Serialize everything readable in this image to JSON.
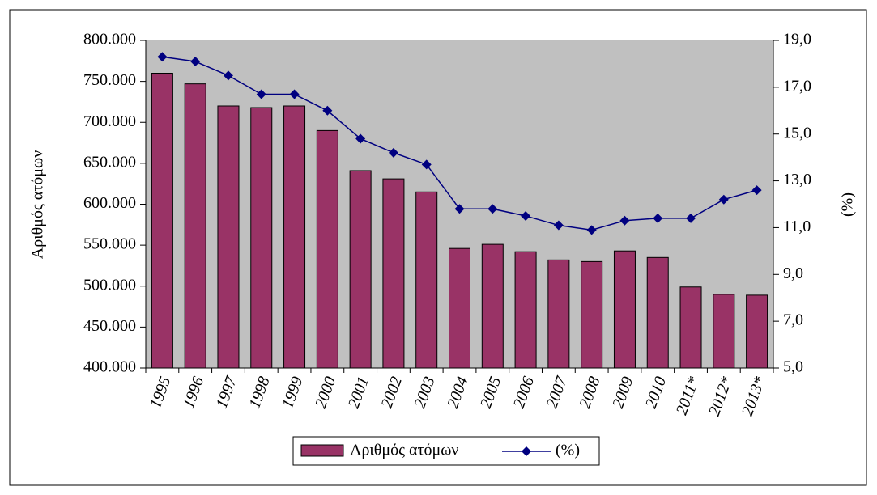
{
  "chart_data": {
    "type": "bar-line",
    "y_label": "Αριθμός ατόμων",
    "y2_label": "(%)",
    "categories": [
      "1995",
      "1996",
      "1997",
      "1998",
      "1999",
      "2000",
      "2001",
      "2002",
      "2003",
      "2004",
      "2005",
      "2006",
      "2007",
      "2008",
      "2009",
      "2010",
      "2011*",
      "2012*",
      "2013*"
    ],
    "series": [
      {
        "name": "Αριθμός ατόμων",
        "type": "bar",
        "color": "#993366",
        "values": [
          760000,
          747000,
          720000,
          718000,
          720000,
          690000,
          641000,
          631000,
          615000,
          546000,
          551000,
          542000,
          532000,
          530000,
          543000,
          535000,
          499000,
          490000,
          489000
        ]
      },
      {
        "name": "(%)",
        "type": "line",
        "axis": "y2",
        "color": "#000080",
        "values": [
          18.3,
          18.1,
          17.5,
          16.7,
          16.7,
          16.0,
          14.8,
          14.2,
          13.7,
          11.8,
          11.8,
          11.5,
          11.1,
          10.9,
          11.3,
          11.4,
          11.4,
          12.2,
          12.6
        ]
      }
    ],
    "ylim": [
      400000,
      800000
    ],
    "yticks": [
      {
        "value": 400000,
        "label": "400.000"
      },
      {
        "value": 450000,
        "label": "450.000"
      },
      {
        "value": 500000,
        "label": "500.000"
      },
      {
        "value": 550000,
        "label": "550.000"
      },
      {
        "value": 600000,
        "label": "600.000"
      },
      {
        "value": 650000,
        "label": "650.000"
      },
      {
        "value": 700000,
        "label": "700.000"
      },
      {
        "value": 750000,
        "label": "750.000"
      },
      {
        "value": 800000,
        "label": "800.000"
      }
    ],
    "y2lim": [
      5,
      19
    ],
    "y2ticks": [
      {
        "value": 5,
        "label": "5,0"
      },
      {
        "value": 7,
        "label": "7,0"
      },
      {
        "value": 9,
        "label": "9,0"
      },
      {
        "value": 11,
        "label": "11,0"
      },
      {
        "value": 13,
        "label": "13,0"
      },
      {
        "value": 15,
        "label": "15,0"
      },
      {
        "value": 17,
        "label": "17,0"
      },
      {
        "value": 19,
        "label": "19,0"
      }
    ],
    "plot_background": "#c0c0c0",
    "legend": "bottom"
  }
}
